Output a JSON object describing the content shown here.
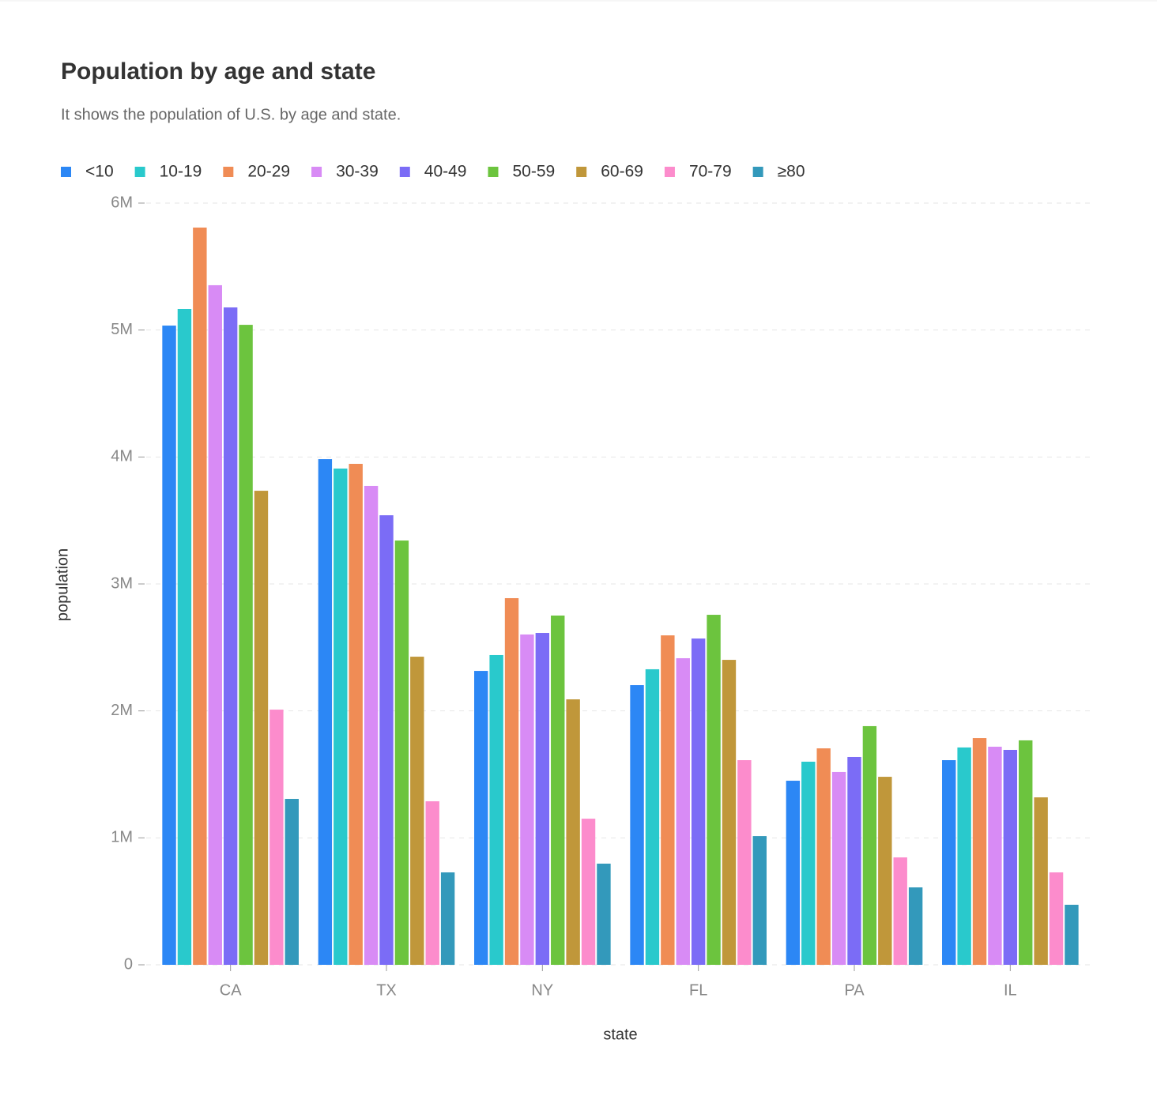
{
  "chart_data": {
    "type": "bar",
    "title": "Population by age and state",
    "subtitle": "It shows the population of U.S. by age and state.",
    "x_label": "state",
    "y_label": "population",
    "categories": [
      "CA",
      "TX",
      "NY",
      "FL",
      "PA",
      "IL"
    ],
    "series": [
      {
        "name": "<10",
        "color": "#2c87f5",
        "values": [
          5035000,
          3983000,
          2315000,
          2203000,
          1450000,
          1612000
        ]
      },
      {
        "name": "10-19",
        "color": "#29c9cc",
        "values": [
          5166000,
          3909000,
          2440000,
          2328000,
          1600000,
          1712000
        ]
      },
      {
        "name": "20-29",
        "color": "#f08c55",
        "values": [
          5807000,
          3946000,
          2888000,
          2595000,
          1705000,
          1786000
        ]
      },
      {
        "name": "30-39",
        "color": "#d88bf5",
        "values": [
          5353000,
          3772000,
          2602000,
          2415000,
          1519000,
          1718000
        ]
      },
      {
        "name": "40-49",
        "color": "#7b6cf6",
        "values": [
          5178000,
          3541000,
          2614000,
          2570000,
          1637000,
          1693000
        ]
      },
      {
        "name": "50-59",
        "color": "#6cc43e",
        "values": [
          5041000,
          3342000,
          2751000,
          2757000,
          1880000,
          1768000
        ]
      },
      {
        "name": "60-69",
        "color": "#c0973a",
        "values": [
          3734000,
          2427000,
          2091000,
          2402000,
          1481000,
          1319000
        ]
      },
      {
        "name": "70-79",
        "color": "#fc8ccc",
        "values": [
          2010000,
          1288000,
          1151000,
          1612000,
          846000,
          728000
        ]
      },
      {
        "name": "≥80",
        "color": "#3399bb",
        "values": [
          1307000,
          728000,
          797000,
          1014000,
          610000,
          473000
        ]
      }
    ],
    "ylim": [
      0,
      6000000
    ],
    "yticks": [
      0,
      {
        "value": 1000000,
        "label": "1M"
      },
      {
        "value": 2000000,
        "label": "2M"
      },
      {
        "value": 3000000,
        "label": "3M"
      },
      {
        "value": 4000000,
        "label": "4M"
      },
      {
        "value": 5000000,
        "label": "5M"
      },
      {
        "value": 6000000,
        "label": "6M"
      }
    ],
    "grid": true,
    "legend": "top-left"
  }
}
